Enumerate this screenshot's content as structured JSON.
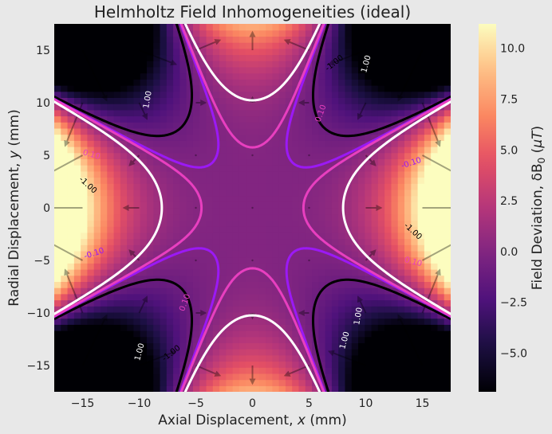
{
  "chart_data": {
    "type": "heatmap",
    "title": "Helmholtz Field Inhomogeneities (ideal)",
    "xlabel_prefix": "Axial Displacement, ",
    "xlabel_var": "x",
    "xlabel_suffix": " (mm)",
    "ylabel_prefix": "Radial Displacement, ",
    "ylabel_var": "y",
    "ylabel_suffix": " (mm)",
    "colorbar_label_prefix": "Field Deviation, δB",
    "colorbar_label_sub": "0",
    "colorbar_label_open": " (",
    "colorbar_label_unit": "μT",
    "colorbar_label_close": ")",
    "xlim": [
      -17.5,
      17.5
    ],
    "ylim": [
      -17.5,
      17.5
    ],
    "clim": [
      -6.9,
      11.2
    ],
    "x_ticks": [
      -15,
      -10,
      -5,
      0,
      5,
      10,
      15
    ],
    "x_tick_labels": [
      "−15",
      "−10",
      "−5",
      "0",
      "5",
      "10",
      "15"
    ],
    "y_ticks": [
      -15,
      -10,
      -5,
      0,
      5,
      10,
      15
    ],
    "y_tick_labels": [
      "−15",
      "−10",
      "−5",
      "0",
      "5",
      "10",
      "15"
    ],
    "cbar_ticks": [
      -5,
      -2.5,
      0,
      2.5,
      5,
      7.5,
      10
    ],
    "cbar_tick_labels": [
      "−5.0",
      "−2.5",
      "0.0",
      "2.5",
      "5.0",
      "7.5",
      "10.0"
    ],
    "colormap": "magma",
    "field_model": "dB = 0.0000305*(8x^4 - 24x^2y^2 + 3y^4)",
    "contours": [
      {
        "level": -1.0,
        "label": "-1.00",
        "color": "#000000"
      },
      {
        "level": -0.1,
        "label": "-0.10",
        "color": "#9b19f5"
      },
      {
        "level": 0.1,
        "label": "0.10",
        "color": "#e83fbf"
      },
      {
        "level": 1.0,
        "label": "1.00",
        "color": "#ffffff"
      }
    ],
    "contour_labels": [
      {
        "text": "-1.00",
        "x": 7.2,
        "y": 13.8,
        "angle": -38,
        "color": "#000000"
      },
      {
        "text": "1.00",
        "x": 10.0,
        "y": 13.7,
        "angle": -75,
        "color": "#ffffff"
      },
      {
        "text": "1.00",
        "x": -9.3,
        "y": 10.3,
        "angle": -80,
        "color": "#ffffff"
      },
      {
        "text": "0.10",
        "x": 6.0,
        "y": 9.0,
        "angle": -70,
        "color": "#e83fbf"
      },
      {
        "text": "0.10",
        "x": -14.2,
        "y": 5.1,
        "angle": 15,
        "color": "#e83fbf"
      },
      {
        "text": "-0.10",
        "x": 14.0,
        "y": 4.3,
        "angle": -18,
        "color": "#9b19f5"
      },
      {
        "text": "-1.00",
        "x": -14.5,
        "y": 2.2,
        "angle": 42,
        "color": "#000000"
      },
      {
        "text": "-1.00",
        "x": 14.2,
        "y": -2.2,
        "angle": 42,
        "color": "#000000"
      },
      {
        "text": "-0.10",
        "x": -14.0,
        "y": -4.3,
        "angle": -18,
        "color": "#9b19f5"
      },
      {
        "text": "0.10",
        "x": 14.2,
        "y": -5.1,
        "angle": 15,
        "color": "#e83fbf"
      },
      {
        "text": "0.10",
        "x": -6.0,
        "y": -9.0,
        "angle": -70,
        "color": "#e83fbf"
      },
      {
        "text": "1.00",
        "x": 9.3,
        "y": -10.3,
        "angle": -80,
        "color": "#ffffff"
      },
      {
        "text": "1.00",
        "x": 8.1,
        "y": -12.6,
        "angle": -75,
        "color": "#ffffff"
      },
      {
        "text": "-1.00",
        "x": -7.2,
        "y": -13.8,
        "angle": -38,
        "color": "#000000"
      },
      {
        "text": "1.00",
        "x": -10.0,
        "y": -13.7,
        "angle": -75,
        "color": "#ffffff"
      }
    ],
    "quiver": {
      "spacing_mm": 5,
      "color": "#000000",
      "opacity": 0.35
    },
    "grid": false
  }
}
